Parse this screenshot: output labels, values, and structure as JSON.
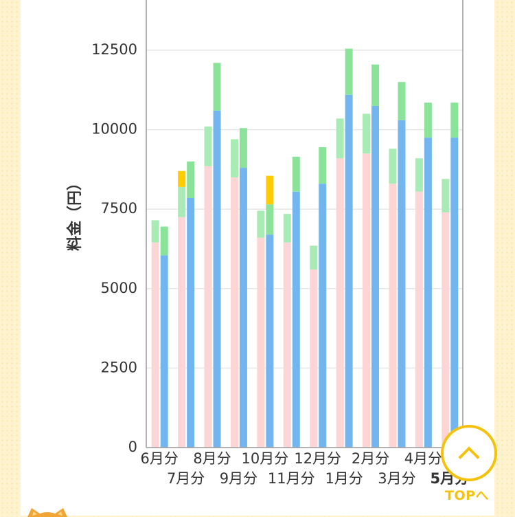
{
  "chart_data": {
    "type": "bar",
    "ylabel": "料金（円）",
    "ylim": [
      0,
      14000
    ],
    "yticks": [
      0,
      2500,
      5000,
      7500,
      10000,
      12500
    ],
    "grid": true,
    "categories": [
      "6月分",
      "7月分",
      "8月分",
      "9月分",
      "10月分",
      "11月分",
      "12月分",
      "1月分",
      "2月分",
      "3月分",
      "4月分",
      "5月分"
    ],
    "highlight_category": "5月分",
    "series": [
      {
        "stack": "previous",
        "color": "#fdd5d5",
        "values": [
          6450,
          7250,
          8850,
          8500,
          6600,
          6450,
          5600,
          9100,
          9250,
          8300,
          8050,
          7400
        ]
      },
      {
        "stack": "previous",
        "color": "#a8ebb4",
        "values": [
          700,
          950,
          1250,
          1200,
          850,
          900,
          750,
          1250,
          1250,
          1100,
          1050,
          1050
        ]
      },
      {
        "stack": "previous",
        "color": "#ffcc00",
        "values": [
          0,
          500,
          0,
          0,
          0,
          0,
          0,
          0,
          0,
          0,
          0,
          0
        ]
      },
      {
        "stack": "current",
        "color": "#72b5ef",
        "values": [
          6050,
          7850,
          10600,
          8800,
          6700,
          8050,
          8300,
          11100,
          10750,
          10300,
          9750,
          9750
        ]
      },
      {
        "stack": "current",
        "color": "#8be39a",
        "values": [
          900,
          1150,
          1500,
          1250,
          950,
          1100,
          1150,
          1450,
          1300,
          1200,
          1100,
          1100
        ]
      },
      {
        "stack": "current",
        "color": "#ffcc00",
        "values": [
          0,
          0,
          0,
          0,
          900,
          0,
          0,
          0,
          0,
          0,
          0,
          0
        ]
      }
    ]
  },
  "top_button": {
    "label": "TOPへ",
    "color": "#f4c20d"
  }
}
